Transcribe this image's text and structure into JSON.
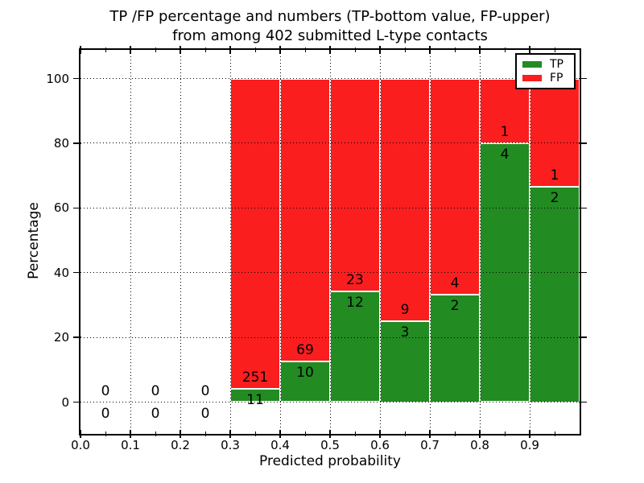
{
  "header": {
    "title_line1": "TP /FP percentage and numbers (TP-bottom value, FP-upper)",
    "title_line2": "from among 402 submitted L-type contacts"
  },
  "chart_data": {
    "type": "bar",
    "stacked": true,
    "normalized_to_percent": true,
    "title": "TP /FP percentage and numbers (TP-bottom value, FP-upper) from among 402 submitted L-type contacts",
    "xlabel": "Predicted probability",
    "ylabel": "Percentage",
    "xlim": [
      0.0,
      1.0
    ],
    "ylim": [
      -10,
      109
    ],
    "grid": "dotted",
    "legend_position": "upper right",
    "total_contacts": 402,
    "x_tick_values": [
      0.0,
      0.1,
      0.2,
      0.3,
      0.4,
      0.5,
      0.6,
      0.7,
      0.8,
      0.9
    ],
    "x_tick_labels": [
      "0.0",
      "0.1",
      "0.2",
      "0.3",
      "0.4",
      "0.5",
      "0.6",
      "0.7",
      "0.8",
      "0.9"
    ],
    "x_minor_tick_values": [
      0.05,
      0.15,
      0.25,
      0.35,
      0.45,
      0.55,
      0.65,
      0.75,
      0.85,
      0.95
    ],
    "y_tick_values": [
      0,
      20,
      40,
      60,
      80,
      100
    ],
    "y_tick_labels": [
      "0",
      "20",
      "40",
      "60",
      "80",
      "100"
    ],
    "series": [
      {
        "name": "TP",
        "color": "#228b22",
        "position": "bottom"
      },
      {
        "name": "FP",
        "color": "#fa1e1e",
        "position": "top"
      }
    ],
    "bins": [
      {
        "range": [
          0.0,
          0.1
        ],
        "tp": 0,
        "fp": 0
      },
      {
        "range": [
          0.1,
          0.2
        ],
        "tp": 0,
        "fp": 0
      },
      {
        "range": [
          0.2,
          0.3
        ],
        "tp": 0,
        "fp": 0
      },
      {
        "range": [
          0.3,
          0.4
        ],
        "tp": 11,
        "fp": 251
      },
      {
        "range": [
          0.4,
          0.5
        ],
        "tp": 10,
        "fp": 69
      },
      {
        "range": [
          0.5,
          0.6
        ],
        "tp": 12,
        "fp": 23
      },
      {
        "range": [
          0.6,
          0.7
        ],
        "tp": 3,
        "fp": 9
      },
      {
        "range": [
          0.7,
          0.8
        ],
        "tp": 2,
        "fp": 4
      },
      {
        "range": [
          0.8,
          0.9
        ],
        "tp": 4,
        "fp": 1
      },
      {
        "range": [
          0.9,
          1.0
        ],
        "tp": 2,
        "fp": 1
      }
    ]
  }
}
